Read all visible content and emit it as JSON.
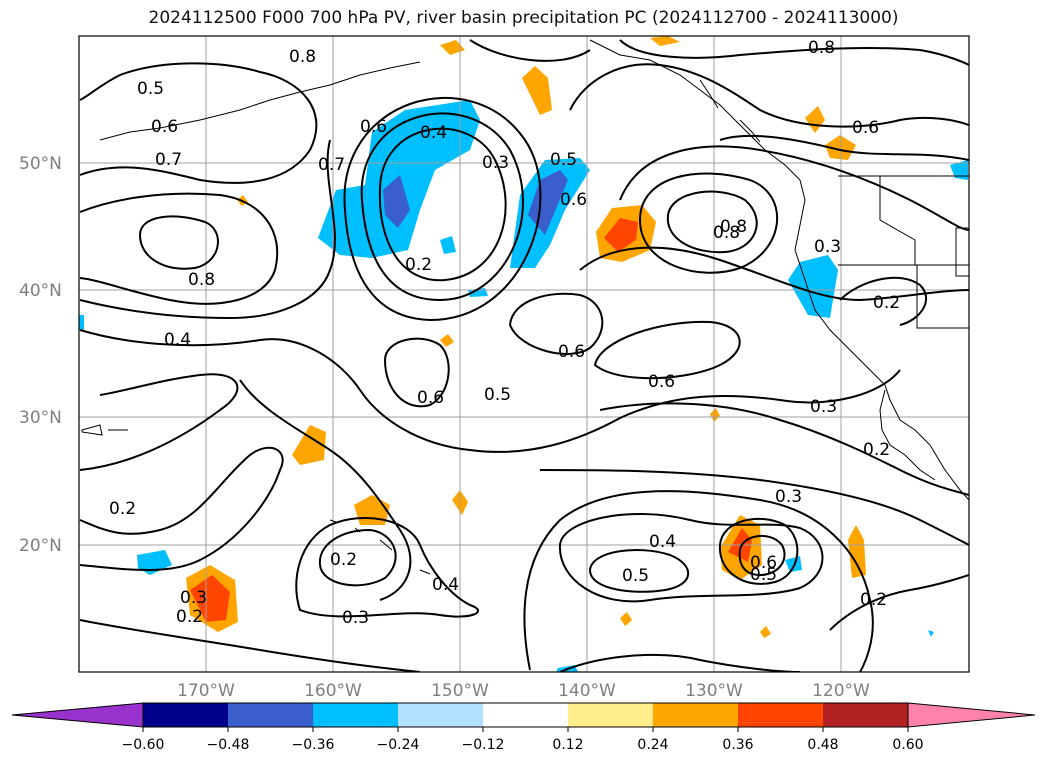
{
  "title": "2024112500 F000 700 hPa PV, river basin precipitation PC (2024112700 - 2024113000)",
  "lat_labels": [
    "50°N",
    "40°N",
    "30°N",
    "20°N"
  ],
  "lon_labels": [
    "170°W",
    "160°W",
    "150°W",
    "140°W",
    "130°W",
    "120°W"
  ],
  "colorbar": {
    "colors": [
      "#9932CC",
      "#00008B",
      "#3A5FCD",
      "#00BFFF",
      "#B0E2FF",
      "#FFFFFF",
      "#FFEC8B",
      "#FFA500",
      "#FF4500",
      "#B22222",
      "#FF82AB"
    ],
    "tick_labels": [
      "−0.60",
      "−0.48",
      "−0.36",
      "−0.24",
      "−0.12",
      "0.12",
      "0.24",
      "0.36",
      "0.48",
      "0.60"
    ]
  },
  "contour_labels": [
    {
      "text": "0.5"
    },
    {
      "text": "0.6"
    },
    {
      "text": "0.7"
    },
    {
      "text": "0.8"
    },
    {
      "text": "0.6"
    },
    {
      "text": "0.4"
    },
    {
      "text": "0.3"
    },
    {
      "text": "0.5"
    },
    {
      "text": "0.6"
    },
    {
      "text": "0.2"
    },
    {
      "text": "0.8"
    },
    {
      "text": "0.7"
    },
    {
      "text": "0.8"
    },
    {
      "text": "0.6"
    },
    {
      "text": "0.3"
    },
    {
      "text": "0.2"
    },
    {
      "text": "0.8"
    },
    {
      "text": "0.4"
    },
    {
      "text": "0.6"
    },
    {
      "text": "0.6"
    },
    {
      "text": "0.5"
    },
    {
      "text": "0.6"
    },
    {
      "text": "0.3"
    },
    {
      "text": "0.2"
    },
    {
      "text": "0.2"
    },
    {
      "text": "0.3"
    },
    {
      "text": "0.4"
    },
    {
      "text": "0.5"
    },
    {
      "text": "0.6"
    },
    {
      "text": "0.5"
    },
    {
      "text": "0.2"
    },
    {
      "text": "0.3"
    },
    {
      "text": "0.4"
    },
    {
      "text": "0.3"
    },
    {
      "text": "0.2"
    },
    {
      "text": "0.2"
    },
    {
      "text": "0.8"
    }
  ]
}
